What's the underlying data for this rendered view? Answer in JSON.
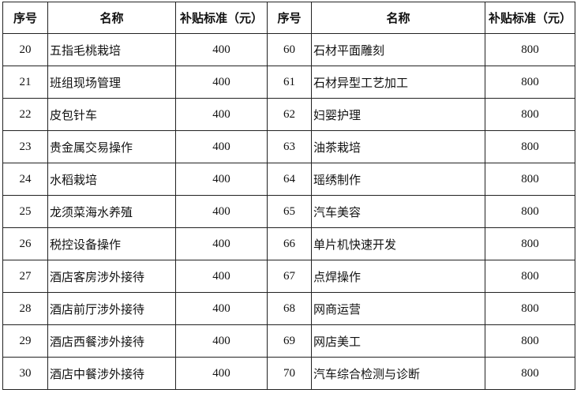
{
  "headers": [
    "序号",
    "名称",
    "补贴标准（元）",
    "序号",
    "名称",
    "补贴标准（元）"
  ],
  "rows": [
    {
      "l_no": "20",
      "l_name": "五指毛桃栽培",
      "l_val": "400",
      "r_no": "60",
      "r_name": "石材平面雕刻",
      "r_val": "800"
    },
    {
      "l_no": "21",
      "l_name": "班组现场管理",
      "l_val": "400",
      "r_no": "61",
      "r_name": "石材异型工艺加工",
      "r_val": "800"
    },
    {
      "l_no": "22",
      "l_name": "皮包针车",
      "l_val": "400",
      "r_no": "62",
      "r_name": "妇婴护理",
      "r_val": "800"
    },
    {
      "l_no": "23",
      "l_name": "贵金属交易操作",
      "l_val": "400",
      "r_no": "63",
      "r_name": "油茶栽培",
      "r_val": "800"
    },
    {
      "l_no": "24",
      "l_name": "水稻栽培",
      "l_val": "400",
      "r_no": "64",
      "r_name": "瑶绣制作",
      "r_val": "800"
    },
    {
      "l_no": "25",
      "l_name": "龙须菜海水养殖",
      "l_val": "400",
      "r_no": "65",
      "r_name": "汽车美容",
      "r_val": "800"
    },
    {
      "l_no": "26",
      "l_name": "税控设备操作",
      "l_val": "400",
      "r_no": "66",
      "r_name": "单片机快速开发",
      "r_val": "800"
    },
    {
      "l_no": "27",
      "l_name": "酒店客房涉外接待",
      "l_val": "400",
      "r_no": "67",
      "r_name": "点焊操作",
      "r_val": "800"
    },
    {
      "l_no": "28",
      "l_name": "酒店前厅涉外接待",
      "l_val": "400",
      "r_no": "68",
      "r_name": "网商运营",
      "r_val": "800"
    },
    {
      "l_no": "29",
      "l_name": "酒店西餐涉外接待",
      "l_val": "400",
      "r_no": "69",
      "r_name": "网店美工",
      "r_val": "800"
    },
    {
      "l_no": "30",
      "l_name": "酒店中餐涉外接待",
      "l_val": "400",
      "r_no": "70",
      "r_name": "汽车综合检测与诊断",
      "r_val": "800"
    }
  ]
}
